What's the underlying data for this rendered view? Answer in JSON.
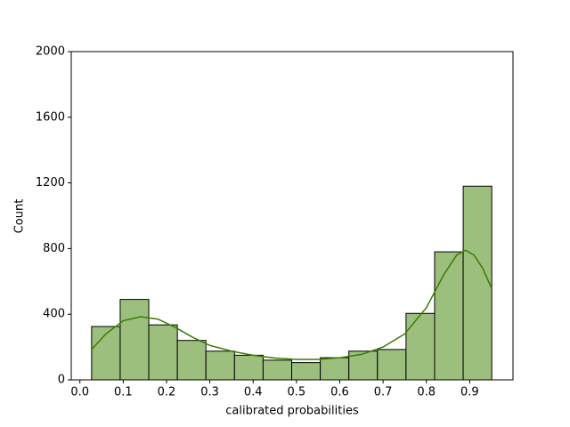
{
  "chart_data": {
    "type": "histogram",
    "xlabel": "calibrated probabilities",
    "ylabel": "Count",
    "bins": [
      0.027,
      0.093,
      0.159,
      0.225,
      0.291,
      0.357,
      0.423,
      0.489,
      0.555,
      0.621,
      0.687,
      0.753,
      0.819,
      0.885,
      0.951
    ],
    "values": [
      325,
      490,
      335,
      240,
      175,
      150,
      120,
      105,
      135,
      175,
      185,
      405,
      780,
      1180
    ],
    "color": "#9dbf7d",
    "edgecolor": "#000000",
    "kde": {
      "x": [
        0.027,
        0.06,
        0.1,
        0.14,
        0.18,
        0.22,
        0.26,
        0.3,
        0.35,
        0.4,
        0.45,
        0.5,
        0.55,
        0.6,
        0.65,
        0.7,
        0.75,
        0.8,
        0.84,
        0.87,
        0.89,
        0.91,
        0.93,
        0.951
      ],
      "values": [
        185,
        280,
        360,
        385,
        370,
        320,
        260,
        210,
        175,
        150,
        133,
        125,
        125,
        135,
        155,
        200,
        280,
        440,
        640,
        760,
        790,
        760,
        680,
        555
      ],
      "color": "#3a7d00"
    },
    "xlim": [
      -0.02,
      1.0
    ],
    "ylim": [
      0,
      2000
    ],
    "xticks": [
      {
        "value": 0.0,
        "label": "0.0"
      },
      0.1,
      0.2,
      0.3,
      0.4,
      0.5,
      0.6,
      0.7,
      0.8,
      0.9
    ],
    "yticks": [
      0,
      400,
      800,
      1200,
      1600,
      2000
    ]
  }
}
